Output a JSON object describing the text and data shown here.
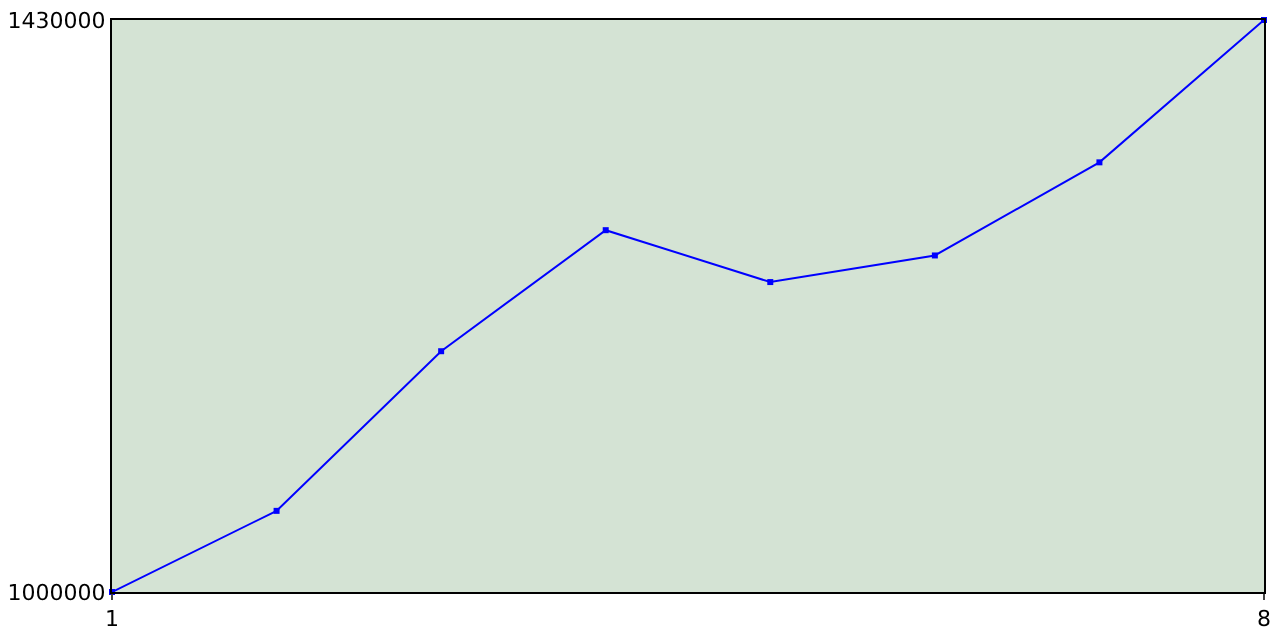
{
  "chart_data": {
    "type": "line",
    "x": [
      1,
      2,
      3,
      4,
      5,
      6,
      7,
      8
    ],
    "series": [
      {
        "color": "#0000ff",
        "values": [
          1000000,
          1061000,
          1181000,
          1272000,
          1233000,
          1253000,
          1323000,
          1430000
        ]
      }
    ],
    "xlim": [
      1,
      8
    ],
    "xticks": [
      1,
      8
    ],
    "ylim": [
      1000000,
      1430000
    ],
    "yticks": [
      1000000,
      1430000
    ],
    "legend": false,
    "marker": "square",
    "line_style": "solid"
  }
}
